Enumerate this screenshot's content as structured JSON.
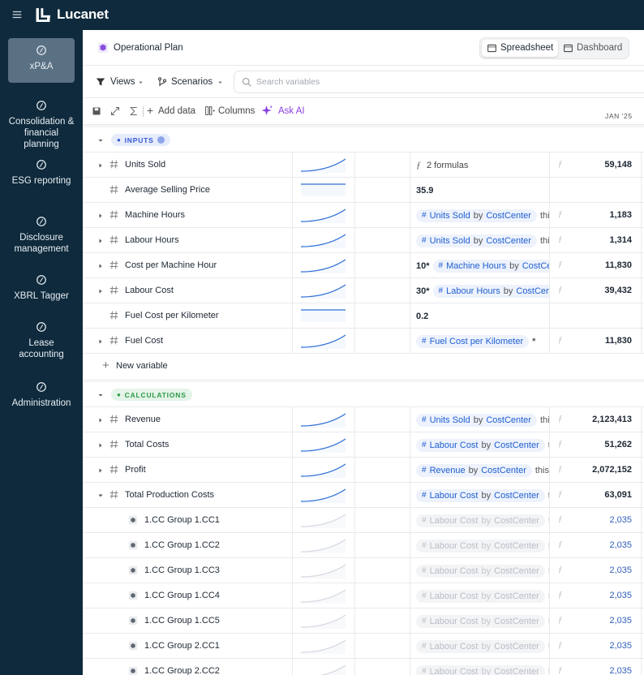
{
  "app": {
    "name": "Lucanet"
  },
  "sidebar": {
    "items": [
      {
        "label": "xP&A",
        "active": true
      },
      {
        "label": "Consolidation & financial planning"
      },
      {
        "label": "ESG reporting"
      },
      {
        "label": "Disclosure management"
      },
      {
        "label": "XBRL Tagger"
      },
      {
        "label": "Lease accounting"
      },
      {
        "label": "Administration"
      }
    ]
  },
  "header": {
    "title": "Operational Plan",
    "tabs": [
      {
        "label": "Spreadsheet",
        "active": true
      },
      {
        "label": "Dashboard"
      }
    ]
  },
  "toolbar": {
    "views": "Views",
    "scenarios": "Scenarios",
    "search_placeholder": "Search variables"
  },
  "actions": {
    "add_data": "Add data",
    "columns": "Columns",
    "ask_ai": "Ask AI"
  },
  "column_header": "JAN '25",
  "new_variable": "New variable",
  "sections": [
    {
      "label": "INPUTS",
      "color": "blue",
      "rows": [
        {
          "name": "Units Sold",
          "kind": "group",
          "formula": {
            "text": "2 formulas"
          },
          "value": "59,148"
        },
        {
          "name": "Average Selling Price",
          "kind": "leaf",
          "formula": {
            "text": "35.9"
          }
        },
        {
          "name": "Machine Hours",
          "kind": "group",
          "formula": {
            "chip": {
              "var": "Units Sold",
              "by": "by",
              "dim": "CostCenter"
            },
            "suffix": "this"
          },
          "value": "1,183"
        },
        {
          "name": "Labour Hours",
          "kind": "group",
          "formula": {
            "chip": {
              "var": "Units Sold",
              "by": "by",
              "dim": "CostCenter"
            },
            "suffix": "this"
          },
          "value": "1,314"
        },
        {
          "name": "Cost per Machine Hour",
          "kind": "group",
          "formula": {
            "prefix": "10*",
            "chip": {
              "var": "Machine Hours",
              "by": "by",
              "dim": "CostCenter"
            }
          },
          "value": "11,830"
        },
        {
          "name": "Labour Cost",
          "kind": "group",
          "formula": {
            "prefix": "30*",
            "chip": {
              "var": "Labour Hours",
              "by": "by",
              "dim": "CostCenter"
            }
          },
          "value": "39,432"
        },
        {
          "name": "Fuel Cost per Kilometer",
          "kind": "leaf",
          "formula": {
            "text": "0.2"
          }
        },
        {
          "name": "Fuel Cost",
          "kind": "group",
          "formula": {
            "chip": {
              "var": "Fuel Cost per Kilometer"
            },
            "suffix": "*"
          },
          "value": "11,830"
        }
      ]
    },
    {
      "label": "CALCULATIONS",
      "color": "green",
      "rows": [
        {
          "name": "Revenue",
          "kind": "group",
          "formula": {
            "chip": {
              "var": "Units Sold",
              "by": "by",
              "dim": "CostCenter"
            },
            "suffix": "this"
          },
          "value": "2,123,413"
        },
        {
          "name": "Total Costs",
          "kind": "group",
          "formula": {
            "chip": {
              "var": "Labour Cost",
              "by": "by",
              "dim": "CostCenter"
            },
            "suffix": "t"
          },
          "value": "51,262"
        },
        {
          "name": "Profit",
          "kind": "group",
          "formula": {
            "chip": {
              "var": "Revenue",
              "by": "by",
              "dim": "CostCenter"
            },
            "suffix": "this r"
          },
          "value": "2,072,152"
        },
        {
          "name": "Total Production Costs",
          "kind": "expanded",
          "formula": {
            "chip": {
              "var": "Labour Cost",
              "by": "by",
              "dim": "CostCenter"
            },
            "suffix": "t"
          },
          "value": "63,091"
        },
        {
          "name": "1.CC Group 1.CC1",
          "kind": "sub",
          "formula": {
            "chip": {
              "var": "Labour Cost",
              "by": "by",
              "dim": "CostCenter"
            },
            "suffix": "t"
          },
          "value": "2,035"
        },
        {
          "name": "1.CC Group 1.CC2",
          "kind": "sub",
          "formula": {
            "chip": {
              "var": "Labour Cost",
              "by": "by",
              "dim": "CostCenter"
            },
            "suffix": "t"
          },
          "value": "2,035"
        },
        {
          "name": "1.CC Group 1.CC3",
          "kind": "sub",
          "formula": {
            "chip": {
              "var": "Labour Cost",
              "by": "by",
              "dim": "CostCenter"
            },
            "suffix": "t"
          },
          "value": "2,035"
        },
        {
          "name": "1.CC Group 1.CC4",
          "kind": "sub",
          "formula": {
            "chip": {
              "var": "Labour Cost",
              "by": "by",
              "dim": "CostCenter"
            },
            "suffix": "t"
          },
          "value": "2,035"
        },
        {
          "name": "1.CC Group 1.CC5",
          "kind": "sub",
          "formula": {
            "chip": {
              "var": "Labour Cost",
              "by": "by",
              "dim": "CostCenter"
            },
            "suffix": "t"
          },
          "value": "2,035"
        },
        {
          "name": "1.CC Group 2.CC1",
          "kind": "sub",
          "formula": {
            "chip": {
              "var": "Labour Cost",
              "by": "by",
              "dim": "CostCenter"
            },
            "suffix": "t"
          },
          "value": "2,035"
        },
        {
          "name": "1.CC Group 2.CC2",
          "kind": "sub",
          "formula": {
            "chip": {
              "var": "Labour Cost",
              "by": "by",
              "dim": "CostCenter"
            },
            "suffix": "t"
          },
          "value": "2,035"
        }
      ]
    }
  ]
}
